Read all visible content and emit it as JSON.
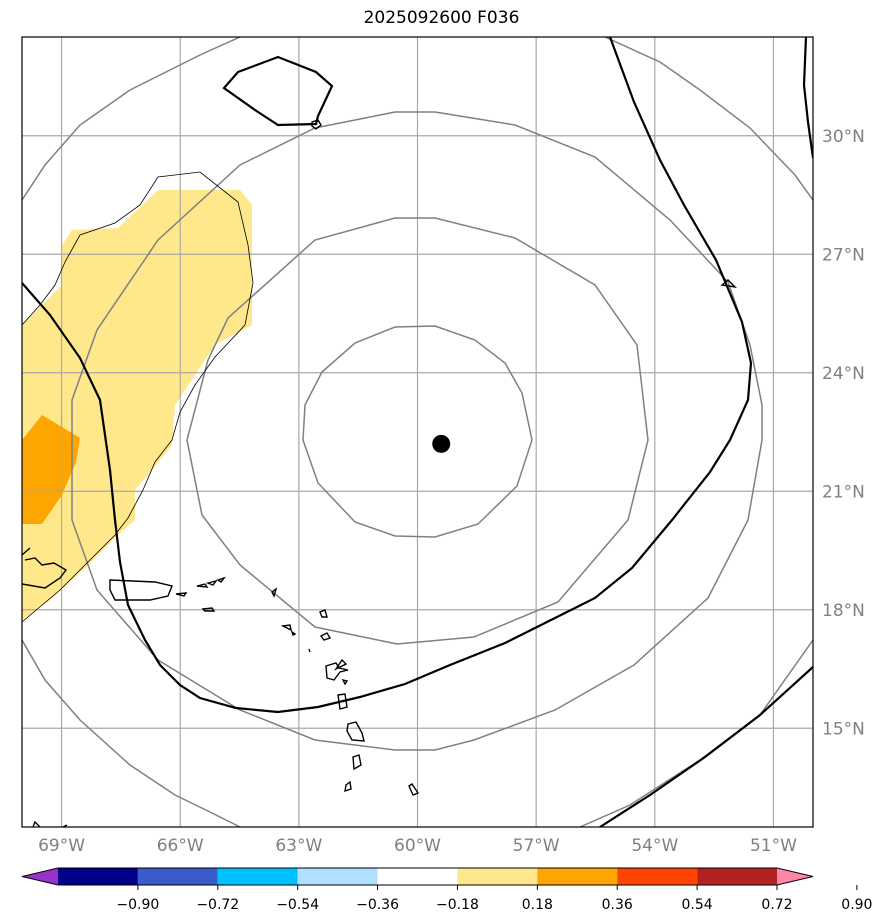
{
  "title": "2025092600 F036",
  "colors": {
    "background": "#ffffff",
    "grid": "#a9a9a9",
    "gray_contour": "#808080",
    "black_contour": "#000000",
    "shade_low": "#ffe88b",
    "shade_mid": "#ffa500",
    "storm_center": "#000000"
  },
  "map": {
    "lon_range": [
      -70.0,
      -50.0
    ],
    "lat_range": [
      12.5,
      32.5
    ],
    "lon_labels": [
      "69°W",
      "66°W",
      "63°W",
      "60°W",
      "57°W",
      "54°W",
      "51°W"
    ],
    "lat_labels": [
      "30°N",
      "27°N",
      "24°N",
      "21°N",
      "18°N",
      "15°N"
    ],
    "storm_center": {
      "lon": -59.4,
      "lat": 22.2
    }
  },
  "colorbar": {
    "colors": [
      "#9932cc",
      "#00008b",
      "#3a5bcc",
      "#00bfff",
      "#b0e0ff",
      "#ffffff",
      "#ffe88b",
      "#ffa500",
      "#ff4500",
      "#b22222",
      "#ff88aa"
    ],
    "tick_labels": [
      "−0.90",
      "−0.72",
      "−0.54",
      "−0.36",
      "−0.18",
      "0.18",
      "0.36",
      "0.54",
      "0.72",
      "0.90"
    ]
  }
}
